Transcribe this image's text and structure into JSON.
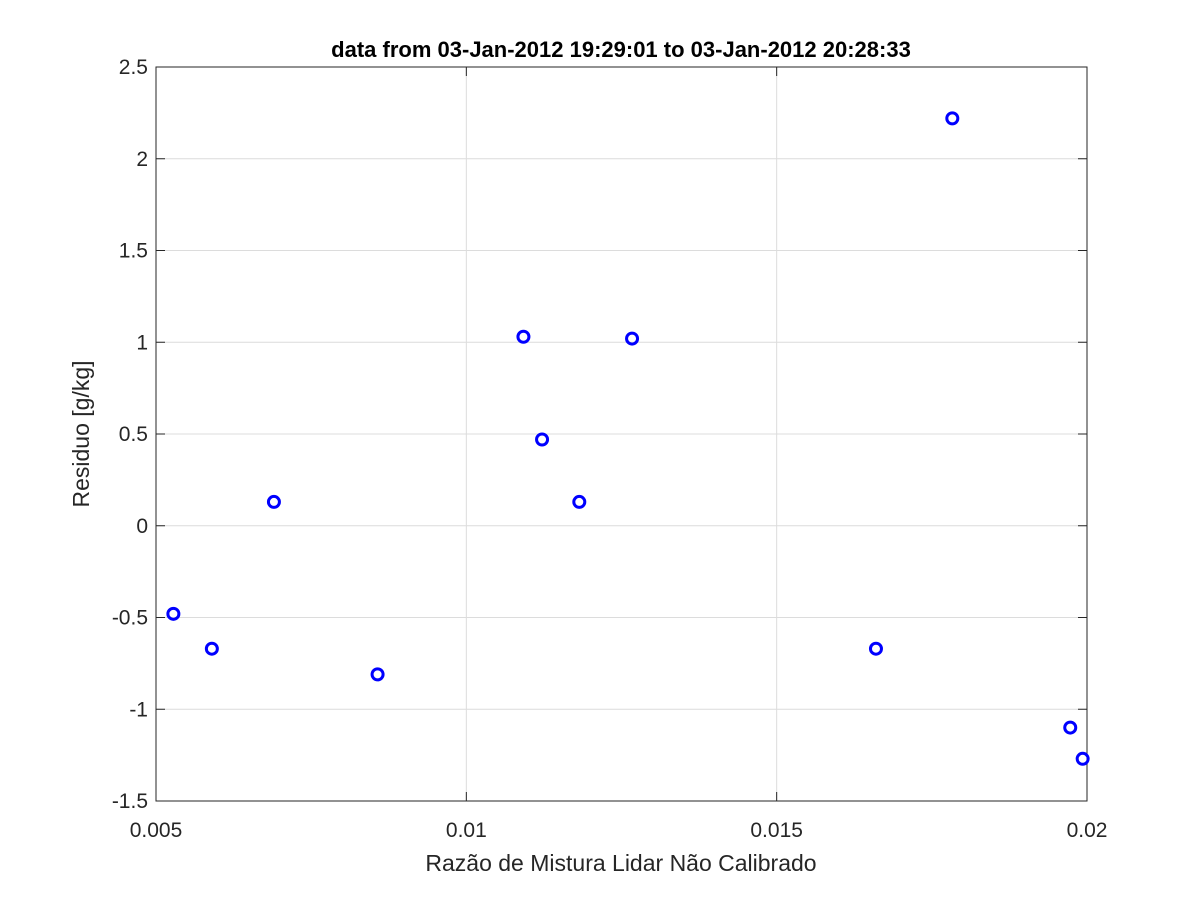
{
  "chart_data": {
    "type": "scatter",
    "title": "data from 03-Jan-2012 19:29:01 to 03-Jan-2012 20:28:33",
    "xlabel": "Razão de Mistura Lidar Não Calibrado",
    "ylabel": "Residuo [g/kg]",
    "xlim": [
      0.005,
      0.02
    ],
    "ylim": [
      -1.5,
      2.5
    ],
    "xticks": [
      0.005,
      0.01,
      0.015,
      0.02
    ],
    "xtick_labels": [
      "0.005",
      "0.01",
      "0.015",
      "0.02"
    ],
    "yticks": [
      -1.5,
      -1,
      -0.5,
      0,
      0.5,
      1,
      1.5,
      2,
      2.5
    ],
    "ytick_labels": [
      "-1.5",
      "-1",
      "-0.5",
      "0",
      "0.5",
      "1",
      "1.5",
      "2",
      "2.5"
    ],
    "grid": true,
    "marker": "circle",
    "color": "#0000ff",
    "points": [
      {
        "x": 0.00528,
        "y": -0.48
      },
      {
        "x": 0.0059,
        "y": -0.67
      },
      {
        "x": 0.0069,
        "y": 0.13
      },
      {
        "x": 0.00857,
        "y": -0.81
      },
      {
        "x": 0.01092,
        "y": 1.03
      },
      {
        "x": 0.01122,
        "y": 0.47
      },
      {
        "x": 0.01182,
        "y": 0.13
      },
      {
        "x": 0.01267,
        "y": 1.02
      },
      {
        "x": 0.0166,
        "y": -0.67
      },
      {
        "x": 0.01783,
        "y": 2.22
      },
      {
        "x": 0.01973,
        "y": -1.1
      },
      {
        "x": 0.01993,
        "y": -1.27
      }
    ]
  }
}
